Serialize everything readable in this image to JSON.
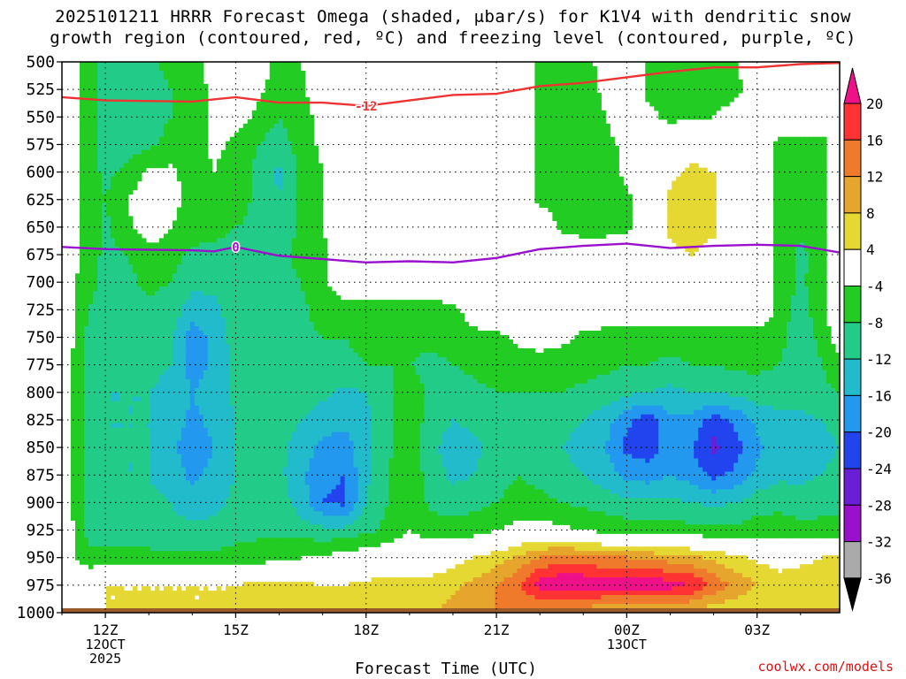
{
  "title": {
    "line1": "2025101211 HRRR Forecast Omega (shaded, μbar/s) for K1V4 with dendritic snow",
    "line2": "growth region (contoured, red, ºC) and freezing level (contoured, purple, ºC)"
  },
  "credit": "coolwx.com/models",
  "chart_data": {
    "type": "heatmap",
    "xlabel": "Forecast Time (UTC)",
    "ylabel": "",
    "x_ticks": [
      {
        "label": "12Z",
        "sub": [
          "12OCT",
          "2025"
        ],
        "hour": 12
      },
      {
        "label": "15Z",
        "sub": [],
        "hour": 15
      },
      {
        "label": "18Z",
        "sub": [],
        "hour": 18
      },
      {
        "label": "21Z",
        "sub": [],
        "hour": 21
      },
      {
        "label": "00Z",
        "sub": [
          "13OCT"
        ],
        "hour": 24
      },
      {
        "label": "03Z",
        "sub": [],
        "hour": 27
      }
    ],
    "xlim_hours": [
      11,
      28.9
    ],
    "y_levels_hPa": [
      500,
      525,
      550,
      575,
      600,
      625,
      650,
      675,
      700,
      725,
      750,
      775,
      800,
      825,
      850,
      875,
      900,
      925,
      950,
      975,
      1000
    ],
    "ylim": [
      1000,
      500
    ],
    "grid": true,
    "colorbar": {
      "ticks": [
        "20",
        "16",
        "12",
        "8",
        "4",
        "-4",
        "-8",
        "-12",
        "-16",
        "-20",
        "-24",
        "-28",
        "-32",
        "-36"
      ],
      "bins": [
        {
          "from": 16,
          "to": 20,
          "color": "#ff3333"
        },
        {
          "from": 12,
          "to": 16,
          "color": "#f07a2c"
        },
        {
          "from": 8,
          "to": 12,
          "color": "#e6a52c"
        },
        {
          "from": 4,
          "to": 8,
          "color": "#e6d832"
        },
        {
          "from": -4,
          "to": 4,
          "color": "#ffffff"
        },
        {
          "from": -8,
          "to": -4,
          "color": "#22cc22"
        },
        {
          "from": -12,
          "to": -8,
          "color": "#22cc88"
        },
        {
          "from": -16,
          "to": -12,
          "color": "#22bbcc"
        },
        {
          "from": -20,
          "to": -16,
          "color": "#2299ee"
        },
        {
          "from": -24,
          "to": -20,
          "color": "#2244ee"
        },
        {
          "from": -28,
          "to": -24,
          "color": "#6a1ed6"
        },
        {
          "from": -32,
          "to": -28,
          "color": "#9a10cc"
        },
        {
          "from": -36,
          "to": -32,
          "color": "#aaaaaa"
        }
      ],
      "over_color": "#ee1188",
      "under_color": "#000000"
    },
    "contours": [
      {
        "name": "-12",
        "color": "#ee3333",
        "label": "-12",
        "points": [
          [
            11,
            532
          ],
          [
            12,
            535
          ],
          [
            14,
            536
          ],
          [
            15,
            532
          ],
          [
            16,
            537
          ],
          [
            17,
            537
          ],
          [
            18,
            540
          ],
          [
            19,
            535
          ],
          [
            20,
            530
          ],
          [
            21,
            529
          ],
          [
            22,
            522
          ],
          [
            23,
            519
          ],
          [
            24,
            514
          ],
          [
            25,
            509
          ],
          [
            26,
            505
          ],
          [
            27,
            505
          ],
          [
            28,
            502
          ],
          [
            28.9,
            501
          ]
        ]
      },
      {
        "name": "0",
        "color": "#9911cc",
        "label": "0",
        "points": [
          [
            11,
            668
          ],
          [
            12,
            670
          ],
          [
            14,
            671
          ],
          [
            14.5,
            672
          ],
          [
            15,
            668
          ],
          [
            16,
            676
          ],
          [
            17,
            679
          ],
          [
            18,
            682
          ],
          [
            19,
            681
          ],
          [
            20,
            682
          ],
          [
            21,
            678
          ],
          [
            22,
            670
          ],
          [
            23,
            667
          ],
          [
            24,
            665
          ],
          [
            25,
            669
          ],
          [
            26,
            667
          ],
          [
            27,
            666
          ],
          [
            28,
            667
          ],
          [
            28.9,
            673
          ]
        ]
      }
    ],
    "field": {
      "x_hours": [
        11,
        11.6,
        12,
        12.5,
        13,
        13.5,
        14,
        14.5,
        15,
        15.5,
        16,
        16.5,
        17,
        17.5,
        18,
        18.5,
        19,
        19.5,
        20,
        20.5,
        21,
        21.5,
        22,
        22.5,
        23,
        23.5,
        24,
        24.5,
        25,
        25.5,
        26,
        26.5,
        27,
        27.5,
        28,
        28.5,
        28.9
      ],
      "p_hPa": [
        500,
        525,
        550,
        575,
        600,
        625,
        650,
        675,
        700,
        725,
        750,
        775,
        800,
        825,
        850,
        875,
        900,
        925,
        950,
        975,
        995
      ],
      "omega_rows": [
        [
          0,
          -6,
          -9,
          -9,
          -9,
          -7,
          -6,
          -2,
          0,
          -2,
          -5,
          -4,
          0,
          0,
          0,
          0,
          0,
          0,
          0,
          0,
          0,
          0,
          -5,
          -6,
          -6,
          -2,
          -1,
          -5,
          -6,
          -6,
          -6,
          -4,
          -2,
          0,
          0,
          0,
          0
        ],
        [
          0,
          -6,
          -10,
          -10,
          -9,
          -8,
          -6,
          -3,
          0,
          -3,
          -6,
          -5,
          0,
          0,
          0,
          0,
          0,
          0,
          0,
          0,
          0,
          0,
          -5,
          -6,
          -6,
          -3,
          -1,
          -5,
          -6,
          -6,
          -6,
          -5,
          -2,
          0,
          0,
          0,
          0
        ],
        [
          0,
          -6,
          -10,
          -10,
          -9,
          -8,
          -6,
          -3,
          -2,
          -5,
          -8,
          -6,
          -2,
          0,
          0,
          0,
          0,
          0,
          0,
          0,
          0,
          0,
          -5,
          -6,
          -6,
          -4,
          -2,
          -3,
          -5,
          -5,
          -4,
          -2,
          0,
          0,
          0,
          0,
          0
        ],
        [
          0,
          -6,
          -10,
          -10,
          -9,
          -7,
          -6,
          -3,
          -5,
          -8,
          -10,
          -6,
          -3,
          0,
          0,
          0,
          0,
          0,
          0,
          0,
          0,
          0,
          -5,
          -6,
          -6,
          -5,
          -3,
          -2,
          1,
          2,
          0,
          0,
          0,
          -5,
          -6,
          -6,
          0
        ],
        [
          0,
          -6,
          -9,
          -7,
          -3,
          -3,
          -6,
          -4,
          -6,
          -9,
          -13,
          -7,
          -4,
          0,
          0,
          0,
          0,
          0,
          0,
          0,
          0,
          0,
          -5,
          -6,
          -6,
          -6,
          -3,
          -1,
          3,
          5,
          4,
          0,
          0,
          -5,
          -6,
          -6,
          0
        ],
        [
          0,
          -6,
          -8,
          -4,
          -1,
          -2,
          -6,
          -5,
          -6,
          -9,
          -12,
          -7,
          -4,
          0,
          0,
          0,
          0,
          0,
          0,
          0,
          0,
          0,
          -5,
          -6,
          -6,
          -6,
          -5,
          -1,
          5,
          6,
          5,
          0,
          0,
          -5,
          -6,
          -6,
          0
        ],
        [
          0,
          -6,
          -9,
          -5,
          -1,
          -4,
          -6,
          -7,
          -8,
          -9,
          -11,
          -7,
          -4,
          0,
          0,
          0,
          0,
          0,
          0,
          0,
          0,
          0,
          0,
          -5,
          -6,
          -6,
          -5,
          -1,
          5,
          6,
          5,
          0,
          0,
          -5,
          -7,
          -6,
          0
        ],
        [
          0,
          -6,
          -9,
          -8,
          -6,
          -6,
          -9,
          -9,
          -9,
          -9,
          -9,
          -7,
          -5,
          0,
          0,
          0,
          0,
          0,
          0,
          0,
          0,
          0,
          0,
          0,
          0,
          0,
          0,
          0,
          3,
          4,
          2,
          0,
          0,
          -5,
          -9,
          -6,
          0
        ],
        [
          0,
          -7,
          -9,
          -9,
          -7,
          -8,
          -11,
          -11,
          -10,
          -9,
          -9,
          -8,
          -5,
          -1,
          0,
          0,
          0,
          0,
          0,
          0,
          0,
          0,
          0,
          0,
          0,
          0,
          0,
          0,
          0,
          0,
          0,
          0,
          0,
          -5,
          -9,
          -5,
          0
        ],
        [
          0,
          -8,
          -9,
          -9,
          -9,
          -10,
          -14,
          -13,
          -10,
          -9,
          -9,
          -9,
          -6,
          -6,
          -6,
          -6,
          -6,
          -6,
          -5,
          -2,
          0,
          0,
          0,
          0,
          0,
          0,
          0,
          0,
          0,
          0,
          0,
          0,
          0,
          -5,
          -10,
          -5,
          0
        ],
        [
          0,
          -9,
          -10,
          -10,
          -10,
          -11,
          -18,
          -15,
          -10,
          -9,
          -9,
          -9,
          -8,
          -8,
          -7,
          -7,
          -7,
          -7,
          -6,
          -5,
          -5,
          -3,
          -2,
          -3,
          -5,
          -6,
          -6,
          -6,
          -6,
          -6,
          -6,
          -6,
          -6,
          -6,
          -12,
          -6,
          -2
        ],
        [
          0,
          -10,
          -11,
          -11,
          -11,
          -12,
          -18,
          -15,
          -11,
          -9,
          -9,
          -9,
          -9,
          -9,
          -8,
          -8,
          -8,
          -9,
          -8,
          -7,
          -6,
          -6,
          -6,
          -6,
          -6,
          -7,
          -8,
          -8,
          -9,
          -8,
          -8,
          -7,
          -7,
          -8,
          -11,
          -8,
          -5
        ],
        [
          0,
          -10,
          -12,
          -12,
          -12,
          -13,
          -16,
          -14,
          -11,
          -9,
          -9,
          -10,
          -11,
          -13,
          -12,
          -9,
          -6,
          -9,
          -10,
          -9,
          -8,
          -8,
          -8,
          -8,
          -9,
          -10,
          -11,
          -12,
          -13,
          -12,
          -12,
          -11,
          -10,
          -10,
          -10,
          -9,
          -8
        ],
        [
          0,
          -10,
          -12,
          -12,
          -12,
          -14,
          -17,
          -15,
          -12,
          -10,
          -10,
          -12,
          -14,
          -15,
          -13,
          -9,
          -5,
          -10,
          -12,
          -11,
          -9,
          -9,
          -9,
          -11,
          -12,
          -14,
          -19,
          -22,
          -17,
          -17,
          -22,
          -19,
          -15,
          -13,
          -13,
          -12,
          -11
        ],
        [
          0,
          -10,
          -12,
          -12,
          -12,
          -15,
          -18,
          -16,
          -12,
          -11,
          -11,
          -14,
          -17,
          -18,
          -13,
          -9,
          -5,
          -11,
          -14,
          -13,
          -10,
          -9,
          -10,
          -12,
          -13,
          -16,
          -21,
          -22,
          -18,
          -20,
          -25,
          -22,
          -17,
          -14,
          -14,
          -13,
          -12
        ],
        [
          0,
          -10,
          -12,
          -12,
          -12,
          -14,
          -17,
          -15,
          -12,
          -11,
          -11,
          -15,
          -19,
          -20,
          -13,
          -8,
          -5,
          -10,
          -13,
          -12,
          -9,
          -8,
          -9,
          -11,
          -12,
          -14,
          -17,
          -18,
          -16,
          -18,
          -21,
          -19,
          -15,
          -13,
          -13,
          -12,
          -11
        ],
        [
          0,
          -10,
          -11,
          -11,
          -11,
          -12,
          -14,
          -13,
          -11,
          -10,
          -10,
          -14,
          -20,
          -21,
          -12,
          -8,
          -5,
          -9,
          -10,
          -9,
          -8,
          -7,
          -7,
          -8,
          -9,
          -10,
          -11,
          -11,
          -11,
          -12,
          -13,
          -12,
          -10,
          -9,
          -10,
          -9,
          -9
        ],
        [
          0,
          -9,
          -10,
          -10,
          -10,
          -11,
          -11,
          -11,
          -10,
          -9,
          -9,
          -10,
          -11,
          -11,
          -9,
          -7,
          -4,
          -6,
          -6,
          -6,
          -4,
          -2,
          -2,
          -3,
          -4,
          -5,
          -6,
          -6,
          -6,
          -7,
          -7,
          -7,
          -6,
          -6,
          -7,
          -7,
          -7
        ],
        [
          0,
          -7,
          -7,
          -7,
          -7,
          -7,
          -7,
          -7,
          -6,
          -6,
          -5,
          -4,
          -3,
          -2,
          -1,
          0,
          0,
          0,
          2,
          4,
          6,
          9,
          12,
          14,
          13,
          12,
          12,
          11,
          10,
          9,
          7,
          5,
          3,
          2,
          3,
          4,
          4
        ],
        [
          2,
          2,
          4,
          4,
          4,
          4,
          4,
          4,
          4,
          5,
          5,
          5,
          4,
          4,
          5,
          6,
          6,
          6,
          7,
          9,
          12,
          15,
          22,
          24,
          24,
          23,
          23,
          23,
          22,
          20,
          15,
          11,
          8,
          6,
          6,
          6,
          5
        ],
        [
          4,
          4,
          4,
          4,
          4,
          4,
          4,
          4,
          4,
          5,
          5,
          5,
          5,
          5,
          5,
          6,
          6,
          7,
          9,
          12,
          12,
          12,
          12,
          12,
          12,
          10,
          10,
          10,
          10,
          9,
          7,
          6,
          5,
          5,
          5,
          5,
          4
        ]
      ]
    }
  }
}
